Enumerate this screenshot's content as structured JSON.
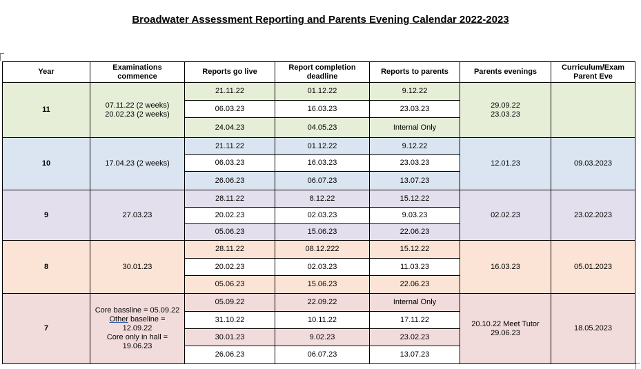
{
  "title": "Broadwater Assessment Reporting and Parents Evening Calendar 2022-2023",
  "headers": {
    "year": "Year",
    "exams": "Examinations commence",
    "live": "Reports go live",
    "deadline": "Report completion deadline",
    "parents": "Reports to parents",
    "evenings": "Parents evenings",
    "curriculum": "Curriculum/Exam Parent Eve"
  },
  "years": [
    {
      "year": "11",
      "exams": [
        "07.11.22 (2 weeks)",
        "20.02.23 (2 weeks)"
      ],
      "evenings": [
        "29.09.22",
        "23.03.23"
      ],
      "curriculum": "",
      "rows": [
        {
          "live": "21.11.22",
          "deadline": "01.12.22",
          "parents": "9.12.22"
        },
        {
          "live": "06.03.23",
          "deadline": "16.03.23",
          "parents": "23.03.23"
        },
        {
          "live": "24.04.23",
          "deadline": "04.05.23",
          "parents": "Internal Only"
        }
      ]
    },
    {
      "year": "10",
      "exams": [
        "17.04.23 (2 weeks)"
      ],
      "evenings": [
        "12.01.23"
      ],
      "curriculum": "09.03.2023",
      "rows": [
        {
          "live": "21.11.22",
          "deadline": "01.12.22",
          "parents": "9.12.22"
        },
        {
          "live": "06.03.23",
          "deadline": "16.03.23",
          "parents": "23.03.23"
        },
        {
          "live": "26.06.23",
          "deadline": "06.07.23",
          "parents": "13.07.23"
        }
      ]
    },
    {
      "year": "9",
      "exams": [
        "27.03.23"
      ],
      "evenings": [
        "02.02.23"
      ],
      "curriculum": "23.02.2023",
      "rows": [
        {
          "live": "28.11.22",
          "deadline": "8.12.22",
          "parents": "15.12.22"
        },
        {
          "live": "20.02.23",
          "deadline": "02.03.23",
          "parents": "9.03.23"
        },
        {
          "live": "05.06.23",
          "deadline": "15.06.23",
          "parents": "22.06.23"
        }
      ]
    },
    {
      "year": "8",
      "exams": [
        "30.01.23"
      ],
      "evenings": [
        "16.03.23"
      ],
      "curriculum": "05.01.2023",
      "rows": [
        {
          "live": "28.11.22",
          "deadline": "08.12.222",
          "parents": "15.12.22"
        },
        {
          "live": "20.02.23",
          "deadline": "02.03.23",
          "parents": "11.03.23"
        },
        {
          "live": "05.06.23",
          "deadline": "15.06.23",
          "parents": "22.06.23"
        }
      ]
    },
    {
      "year": "7",
      "exams": [
        "Core bassline = 05.09.22",
        "Other baseline = 12.09.22",
        "Core only in hall = 19.06.23"
      ],
      "evenings": [
        "20.10.22 Meet Tutor",
        "29.06.23"
      ],
      "curriculum": "18.05.2023",
      "rows": [
        {
          "live": "05.09.22",
          "deadline": "22.09.22",
          "parents": "Internal Only"
        },
        {
          "live": "31.10.22",
          "deadline": "10.11.22",
          "parents": "17.11.22"
        },
        {
          "live": "30.01.23",
          "deadline": "9.02.23",
          "parents": "23.02.23"
        },
        {
          "live": "26.06.23",
          "deadline": "06.07.23",
          "parents": "13.07.23"
        }
      ]
    }
  ]
}
